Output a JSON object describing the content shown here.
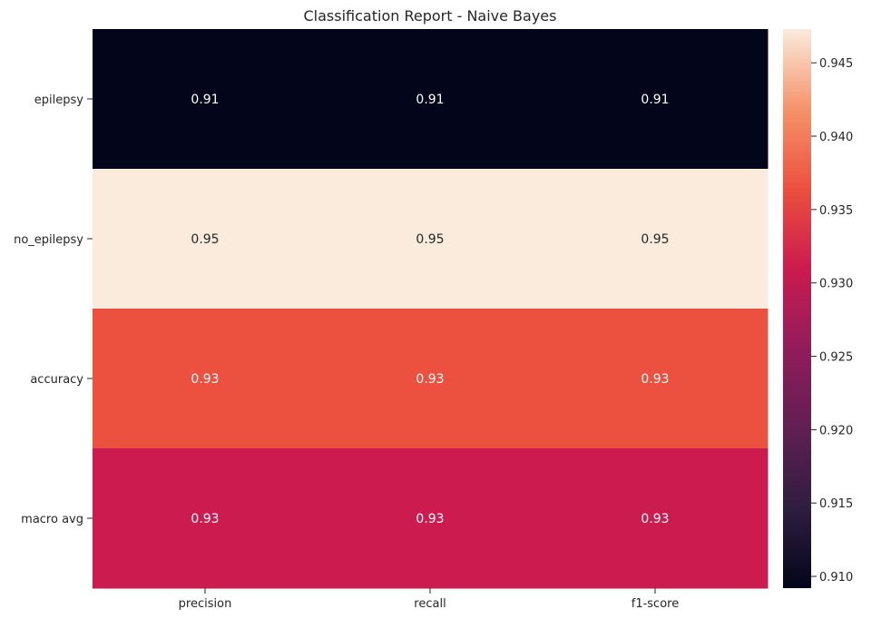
{
  "chart_data": {
    "type": "heatmap",
    "title": "Classification Report - Naive Bayes",
    "rows": [
      "epilepsy",
      "no_epilepsy",
      "accuracy",
      "macro avg"
    ],
    "columns": [
      "precision",
      "recall",
      "f1-score"
    ],
    "values": [
      [
        0.91,
        0.91,
        0.91
      ],
      [
        0.95,
        0.95,
        0.95
      ],
      [
        0.93,
        0.93,
        0.93
      ],
      [
        0.93,
        0.93,
        0.93
      ]
    ],
    "cell_labels": [
      [
        "0.91",
        "0.91",
        "0.91"
      ],
      [
        "0.95",
        "0.95",
        "0.95"
      ],
      [
        "0.93",
        "0.93",
        "0.93"
      ],
      [
        "0.93",
        "0.93",
        "0.93"
      ]
    ],
    "colorbar": {
      "range": [
        0.9092,
        0.9473
      ],
      "ticks": [
        "0.910",
        "0.915",
        "0.920",
        "0.925",
        "0.930",
        "0.935",
        "0.940",
        "0.945"
      ],
      "colormap": "rocket"
    },
    "colors": {
      "row_fills": [
        "#03051a",
        "#faebdd",
        "#ec503e",
        "#cb1b4f"
      ],
      "rocket_stops": [
        "#03051a",
        "#2f1e3f",
        "#611f53",
        "#921c5b",
        "#cb1b4f",
        "#ec503e",
        "#f5936a",
        "#faebdd"
      ],
      "dark_text": "#262626",
      "light_text": "#ffffff"
    }
  }
}
